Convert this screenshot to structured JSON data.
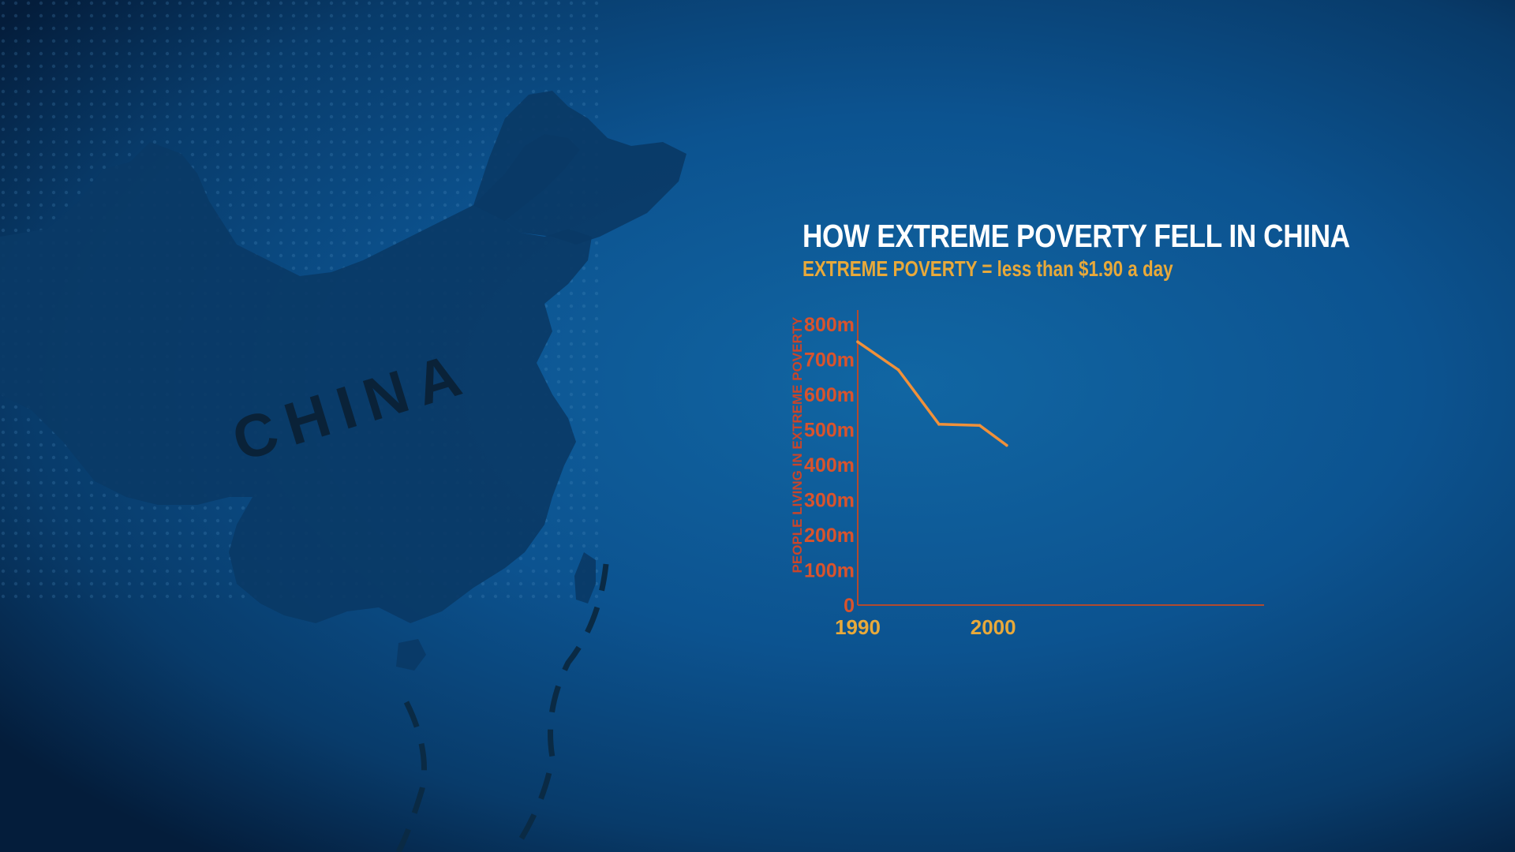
{
  "map": {
    "country_label": "CHINA",
    "colors": {
      "landmass": "#0a3a66",
      "label": "#0a2238",
      "background": "#0d4f86"
    }
  },
  "chart_data": {
    "type": "line",
    "title": "HOW EXTREME POVERTY FELL IN CHINA",
    "subtitle": "EXTREME POVERTY = less than $1.90 a day",
    "xlabel": "",
    "ylabel": "PEOPLE LIVING IN EXTREME POVERTY",
    "xlim": [
      1990,
      2020
    ],
    "ylim": [
      0,
      800
    ],
    "x_ticks": [
      1990,
      2000
    ],
    "x_tick_labels": [
      "1990",
      "2000"
    ],
    "y_ticks": [
      0,
      100,
      200,
      300,
      400,
      500,
      600,
      700,
      800
    ],
    "y_tick_labels": [
      "0",
      "100m",
      "200m",
      "300m",
      "400m",
      "500m",
      "600m",
      "700m",
      "800m"
    ],
    "grid": false,
    "series": [
      {
        "x": [
          1990,
          1993,
          1996,
          1999,
          2001
        ],
        "values": [
          750,
          670,
          515,
          512,
          455
        ],
        "color": "#f0913a"
      }
    ],
    "colors": {
      "title": "#ffffff",
      "subtitle": "#e8a93a",
      "y_ticks": "#d9532c",
      "x_ticks": "#e8a93a",
      "axis": "#b24a2e"
    }
  }
}
